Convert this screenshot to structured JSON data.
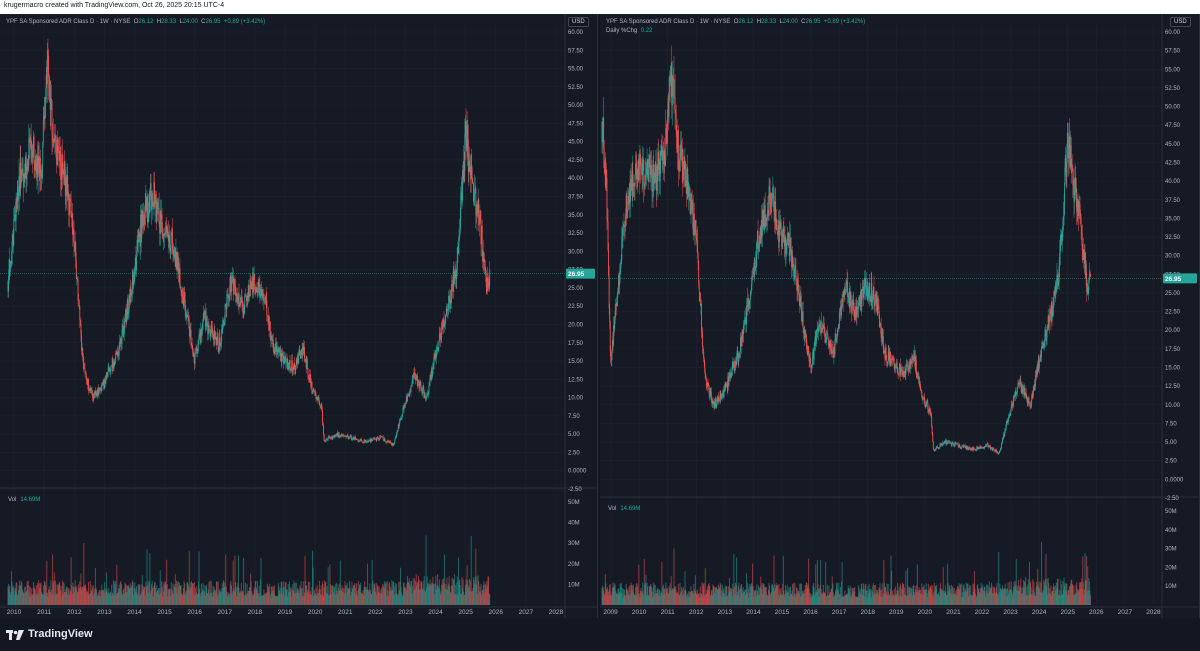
{
  "header": {
    "creator_text": "krugermacro created with TradingView.com, Oct 26, 2025 20:15 UTC-4"
  },
  "footer": {
    "brand": "TradingView",
    "logo_icon": "tradingview-logo-icon"
  },
  "colors": {
    "up": "#26a69a",
    "down": "#ef5350",
    "background": "#161a25",
    "grid": "#1f2330",
    "text": "#b2b5be",
    "price_line": "#26a69a"
  },
  "left": {
    "symbol": "YPF SA Sponsored ADR Class D · 1W · NYSE",
    "o_label": "O",
    "o": "26.12",
    "h_label": "H",
    "h": "28.33",
    "l_label": "L",
    "l": "24.00",
    "c_label": "C",
    "c": "26.95",
    "change": "+0.89 (+3.42%)",
    "currency": "USD",
    "price_label": "26.95",
    "vol_label": "Vol",
    "vol_value": "14.69M"
  },
  "right": {
    "symbol": "YPF SA Sponsored ADR Class D · 1W · NYSE",
    "o_label": "O",
    "o": "26.12",
    "h_label": "H",
    "h": "28.33",
    "l_label": "L",
    "l": "24.00",
    "c_label": "C",
    "c": "26.95",
    "change": "+0.89 (+3.42%)",
    "indicator_label": "Daily %Chg",
    "indicator_value": "0.22",
    "currency": "USD",
    "price_label": "26.95",
    "vol_label": "Vol",
    "vol_value": "14.69M"
  },
  "chart_data": [
    {
      "type": "candlestick",
      "ylim": [
        -2.5,
        60
      ],
      "y_ticks": [
        "60.00",
        "57.50",
        "55.00",
        "52.50",
        "50.00",
        "47.50",
        "45.00",
        "42.50",
        "40.00",
        "37.50",
        "35.00",
        "32.50",
        "30.00",
        "27.50",
        "25.00",
        "22.50",
        "20.00",
        "17.50",
        "15.00",
        "12.50",
        "10.00",
        "7.50",
        "5.00",
        "2.50",
        "0.0000",
        "-2.50"
      ],
      "y_tick_values": [
        60,
        57.5,
        55,
        52.5,
        50,
        47.5,
        45,
        42.5,
        40,
        37.5,
        35,
        32.5,
        30,
        27.5,
        25,
        22.5,
        20,
        17.5,
        15,
        12.5,
        10,
        7.5,
        5,
        2.5,
        0,
        -2.5
      ],
      "x_range": [
        2009.8,
        2028.3
      ],
      "x_ticks": [
        "2010",
        "2011",
        "2012",
        "2013",
        "2014",
        "2015",
        "2016",
        "2017",
        "2018",
        "2019",
        "2020",
        "2021",
        "2022",
        "2023",
        "2024",
        "2025",
        "2026",
        "2027",
        "2028"
      ],
      "x_tick_values": [
        2010,
        2011,
        2012,
        2013,
        2014,
        2015,
        2016,
        2017,
        2018,
        2019,
        2020,
        2021,
        2022,
        2023,
        2024,
        2025,
        2026,
        2027,
        2028
      ],
      "price_path": [
        [
          2009.8,
          26
        ],
        [
          2010.2,
          40
        ],
        [
          2010.6,
          44
        ],
        [
          2010.9,
          40
        ],
        [
          2011.1,
          55
        ],
        [
          2011.4,
          43
        ],
        [
          2011.7,
          40
        ],
        [
          2012.0,
          32
        ],
        [
          2012.3,
          14
        ],
        [
          2012.6,
          10
        ],
        [
          2013.0,
          12
        ],
        [
          2013.5,
          17
        ],
        [
          2013.9,
          25
        ],
        [
          2014.2,
          33
        ],
        [
          2014.6,
          38
        ],
        [
          2014.9,
          33
        ],
        [
          2015.3,
          31
        ],
        [
          2015.7,
          22
        ],
        [
          2016.0,
          15
        ],
        [
          2016.3,
          21
        ],
        [
          2016.8,
          17
        ],
        [
          2017.2,
          26
        ],
        [
          2017.6,
          22
        ],
        [
          2017.9,
          26
        ],
        [
          2018.3,
          24
        ],
        [
          2018.6,
          17
        ],
        [
          2019.0,
          15
        ],
        [
          2019.3,
          14
        ],
        [
          2019.6,
          17
        ],
        [
          2019.9,
          11
        ],
        [
          2020.2,
          9
        ],
        [
          2020.3,
          4
        ],
        [
          2020.7,
          5
        ],
        [
          2021.2,
          4.5
        ],
        [
          2021.7,
          4
        ],
        [
          2022.2,
          4.5
        ],
        [
          2022.6,
          3.5
        ],
        [
          2022.9,
          8
        ],
        [
          2023.3,
          13
        ],
        [
          2023.7,
          10
        ],
        [
          2024.0,
          16
        ],
        [
          2024.4,
          22
        ],
        [
          2024.7,
          28
        ],
        [
          2024.9,
          40
        ],
        [
          2025.0,
          46
        ],
        [
          2025.2,
          40
        ],
        [
          2025.5,
          33
        ],
        [
          2025.7,
          25
        ],
        [
          2025.8,
          26.95
        ]
      ],
      "volume": {
        "ylim": [
          0,
          50
        ],
        "y_ticks": [
          "50M",
          "40M",
          "30M",
          "20M",
          "10M"
        ],
        "y_tick_values": [
          50,
          40,
          30,
          20,
          10
        ]
      }
    },
    {
      "type": "candlestick",
      "ylim": [
        -2.5,
        60
      ],
      "y_ticks": [
        "60.00",
        "57.50",
        "55.00",
        "52.50",
        "50.00",
        "47.50",
        "45.00",
        "42.50",
        "40.00",
        "37.50",
        "35.00",
        "32.50",
        "30.00",
        "27.50",
        "25.00",
        "22.50",
        "20.00",
        "17.50",
        "15.00",
        "12.50",
        "10.00",
        "7.50",
        "5.00",
        "2.50",
        "0.0000",
        "-2.50"
      ],
      "y_tick_values": [
        60,
        57.5,
        55,
        52.5,
        50,
        47.5,
        45,
        42.5,
        40,
        37.5,
        35,
        32.5,
        30,
        27.5,
        25,
        22.5,
        20,
        17.5,
        15,
        12.5,
        10,
        7.5,
        5,
        2.5,
        0,
        -2.5
      ],
      "x_range": [
        2008.7,
        2028.3
      ],
      "x_ticks": [
        "2009",
        "2010",
        "2011",
        "2012",
        "2013",
        "2014",
        "2015",
        "2016",
        "2017",
        "2018",
        "2019",
        "2020",
        "2021",
        "2022",
        "2023",
        "2024",
        "2025",
        "2026",
        "2027",
        "2028"
      ],
      "x_tick_values": [
        2009,
        2010,
        2011,
        2012,
        2013,
        2014,
        2015,
        2016,
        2017,
        2018,
        2019,
        2020,
        2021,
        2022,
        2023,
        2024,
        2025,
        2026,
        2027,
        2028
      ],
      "price_path": [
        [
          2008.7,
          48
        ],
        [
          2008.85,
          40
        ],
        [
          2009.0,
          15
        ],
        [
          2009.2,
          24
        ],
        [
          2009.6,
          38
        ],
        [
          2010.1,
          42
        ],
        [
          2010.5,
          40
        ],
        [
          2010.9,
          44
        ],
        [
          2011.1,
          55
        ],
        [
          2011.4,
          43
        ],
        [
          2011.7,
          40
        ],
        [
          2012.0,
          32
        ],
        [
          2012.3,
          14
        ],
        [
          2012.6,
          10
        ],
        [
          2013.0,
          12
        ],
        [
          2013.5,
          17
        ],
        [
          2013.9,
          25
        ],
        [
          2014.2,
          33
        ],
        [
          2014.6,
          38
        ],
        [
          2014.9,
          33
        ],
        [
          2015.3,
          31
        ],
        [
          2015.7,
          22
        ],
        [
          2016.0,
          15
        ],
        [
          2016.3,
          21
        ],
        [
          2016.8,
          17
        ],
        [
          2017.2,
          26
        ],
        [
          2017.6,
          22
        ],
        [
          2017.9,
          26
        ],
        [
          2018.3,
          24
        ],
        [
          2018.6,
          17
        ],
        [
          2019.0,
          15
        ],
        [
          2019.3,
          14
        ],
        [
          2019.6,
          17
        ],
        [
          2019.9,
          11
        ],
        [
          2020.2,
          9
        ],
        [
          2020.3,
          4
        ],
        [
          2020.7,
          5
        ],
        [
          2021.2,
          4.5
        ],
        [
          2021.7,
          4
        ],
        [
          2022.2,
          4.5
        ],
        [
          2022.6,
          3.5
        ],
        [
          2022.9,
          8
        ],
        [
          2023.3,
          13
        ],
        [
          2023.7,
          10
        ],
        [
          2024.0,
          16
        ],
        [
          2024.4,
          22
        ],
        [
          2024.7,
          28
        ],
        [
          2024.9,
          40
        ],
        [
          2025.0,
          46
        ],
        [
          2025.2,
          40
        ],
        [
          2025.5,
          33
        ],
        [
          2025.7,
          25
        ],
        [
          2025.8,
          26.95
        ]
      ],
      "volume": {
        "ylim": [
          0,
          50
        ],
        "y_ticks": [
          "50M",
          "40M",
          "30M",
          "20M",
          "10M"
        ],
        "y_tick_values": [
          50,
          40,
          30,
          20,
          10
        ]
      }
    }
  ]
}
